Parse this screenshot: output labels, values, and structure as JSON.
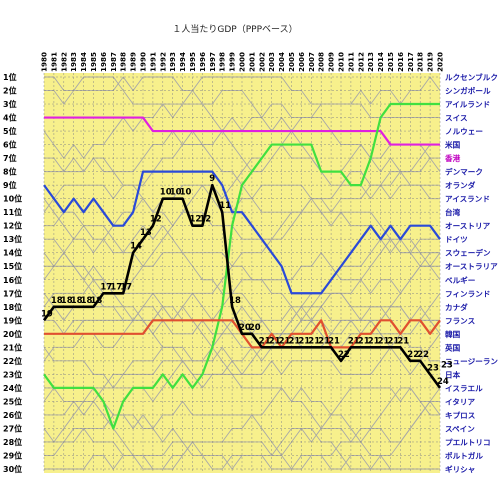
{
  "chart_data": {
    "type": "line",
    "title": "１人当たりGDP（PPPベース）",
    "years": [
      1980,
      1981,
      1982,
      1983,
      1984,
      1985,
      1986,
      1987,
      1988,
      1989,
      1990,
      1991,
      1992,
      1993,
      1994,
      1995,
      1996,
      1997,
      1998,
      1999,
      2000,
      2001,
      2002,
      2003,
      2004,
      2005,
      2006,
      2007,
      2008,
      2009,
      2010,
      2011,
      2012,
      2013,
      2014,
      2015,
      2016,
      2017,
      2018,
      2019,
      2020
    ],
    "rank_labels": [
      "1位",
      "2位",
      "3位",
      "4位",
      "5位",
      "6位",
      "7位",
      "8位",
      "9位",
      "10位",
      "11位",
      "12位",
      "13位",
      "14位",
      "15位",
      "16位",
      "17位",
      "18位",
      "19位",
      "20位",
      "21位",
      "22位",
      "23位",
      "24位",
      "25位",
      "26位",
      "27位",
      "28位",
      "29位",
      "30位"
    ],
    "countries": [
      "ルクセンブルク",
      "シンガポール",
      "アイルランド",
      "スイス",
      "ノルウェー",
      "米国",
      "香港",
      "デンマーク",
      "オランダ",
      "アイスランド",
      "台湾",
      "オーストリア",
      "ドイツ",
      "スウェーデン",
      "オーストラリア",
      "ベルギー",
      "フィンランド",
      "カナダ",
      "フランス",
      "韓国",
      "英国",
      "ニュージーランド",
      "日本",
      "イスラエル",
      "イタリア",
      "キプロス",
      "スペイン",
      "プエルトリコ",
      "ポルトガル",
      "ギリシャ"
    ],
    "country_colors": [
      "#1a1aa8",
      "#1a1aa8",
      "#1a1aa8",
      "#1a1aa8",
      "#1a1aa8",
      "#1a1aa8",
      "#c000c0",
      "#1a1aa8",
      "#1a1aa8",
      "#1a1aa8",
      "#1a1aa8",
      "#1a1aa8",
      "#1a1aa8",
      "#1a1aa8",
      "#1a1aa8",
      "#1a1aa8",
      "#1a1aa8",
      "#1a1aa8",
      "#1a1aa8",
      "#1a1aa8",
      "#1a1aa8",
      "#1a1aa8",
      "#1a1aa8",
      "#1a1aa8",
      "#1a1aa8",
      "#1a1aa8",
      "#1a1aa8",
      "#1a1aa8",
      "#1a1aa8",
      "#1a1aa8"
    ],
    "ylim": [
      1,
      30
    ],
    "grid": true,
    "background": "#f7f08c",
    "series": [
      {
        "color": "#e020e0",
        "values": [
          4,
          4,
          4,
          4,
          4,
          4,
          4,
          4,
          4,
          4,
          4,
          5,
          5,
          5,
          5,
          5,
          5,
          5,
          5,
          5,
          5,
          5,
          5,
          5,
          5,
          5,
          5,
          5,
          5,
          5,
          5,
          5,
          5,
          5,
          5,
          6,
          6,
          6,
          6,
          6,
          6
        ]
      },
      {
        "color": "#2a4ad8",
        "values": [
          9,
          10,
          11,
          10,
          11,
          10,
          11,
          12,
          12,
          11,
          8,
          8,
          8,
          8,
          8,
          8,
          8,
          8,
          9,
          11,
          11,
          12,
          13,
          14,
          15,
          17,
          17,
          17,
          17,
          16,
          15,
          14,
          13,
          12,
          13,
          12,
          13,
          12,
          12,
          12,
          13
        ]
      },
      {
        "color": "#40e040",
        "values": [
          23,
          24,
          24,
          24,
          24,
          24,
          25,
          27,
          25,
          24,
          24,
          24,
          23,
          24,
          23,
          24,
          23,
          21,
          18,
          12,
          9,
          8,
          7,
          6,
          6,
          6,
          6,
          6,
          8,
          8,
          8,
          9,
          9,
          7,
          4,
          3,
          3,
          3,
          3,
          3,
          3
        ]
      },
      {
        "color": "#e05030",
        "values": [
          20,
          20,
          20,
          20,
          20,
          20,
          20,
          20,
          20,
          20,
          20,
          19,
          19,
          19,
          19,
          19,
          19,
          19,
          19,
          19,
          20,
          21,
          21,
          20,
          21,
          20,
          20,
          20,
          19,
          21,
          21,
          21,
          20,
          20,
          19,
          19,
          20,
          19,
          19,
          20,
          19
        ]
      },
      {
        "color": "#000000",
        "values": [
          19,
          18,
          18,
          18,
          18,
          18,
          17,
          17,
          17,
          14,
          13,
          12,
          10,
          10,
          10,
          12,
          12,
          9,
          11,
          18,
          20,
          20,
          21,
          21,
          21,
          21,
          21,
          21,
          21,
          21,
          22,
          21,
          21,
          21,
          21,
          21,
          21,
          22,
          22,
          23,
          24
        ],
        "labels": [
          "19",
          "18",
          "18",
          "18",
          "18",
          "18",
          "17",
          "17",
          "17",
          "14",
          "13",
          "12",
          "10",
          "10",
          "10",
          "12",
          "12",
          "9",
          "11",
          "18",
          "20",
          "20",
          "21",
          "21",
          "21",
          "21",
          "21",
          "21",
          "21",
          "21",
          "22",
          "21",
          "21",
          "21",
          "21",
          "21",
          "21",
          "22",
          "22",
          "23",
          "24"
        ]
      }
    ],
    "extra_labels": [
      "23"
    ]
  }
}
